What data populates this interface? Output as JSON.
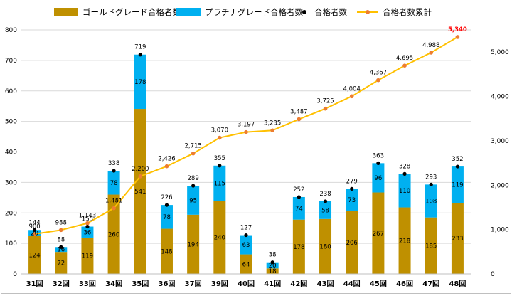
{
  "chart_data": {
    "type": "bar",
    "stacked": true,
    "categories": [
      "31回",
      "32回",
      "33回",
      "34回",
      "35回",
      "36回",
      "37回",
      "39回",
      "40回",
      "41回",
      "42回",
      "43回",
      "44回",
      "45回",
      "46回",
      "47回",
      "48回"
    ],
    "series": [
      {
        "name": "ゴールドグレード合格者数",
        "type": "bar",
        "color": "#bf9000",
        "values": [
          124,
          72,
          119,
          260,
          541,
          148,
          194,
          240,
          64,
          18,
          178,
          180,
          206,
          267,
          218,
          185,
          233
        ]
      },
      {
        "name": "プラチナグレード合格者数",
        "type": "bar",
        "color": "#00b0f0",
        "values": [
          20,
          16,
          36,
          78,
          178,
          78,
          95,
          115,
          63,
          20,
          74,
          58,
          73,
          96,
          110,
          108,
          119
        ]
      },
      {
        "name": "合格者数",
        "type": "scatter",
        "color": "#000000",
        "values": [
          144,
          88,
          155,
          338,
          719,
          226,
          289,
          355,
          127,
          38,
          252,
          238,
          279,
          363,
          328,
          293,
          352
        ]
      },
      {
        "name": "合格者数累計",
        "type": "line",
        "axis": "secondary",
        "color": "#ffc000",
        "marker_color": "#ed7d31",
        "values": [
          900,
          988,
          1143,
          1481,
          2200,
          2426,
          2715,
          3070,
          3197,
          3235,
          3487,
          3725,
          4004,
          4367,
          4695,
          4988,
          5340
        ]
      }
    ],
    "y_primary": {
      "min": 0,
      "max": 800,
      "step": 100,
      "ticks": [
        "0",
        "100",
        "200",
        "300",
        "400",
        "500",
        "600",
        "700",
        "800"
      ]
    },
    "y_secondary": {
      "min": 0,
      "max": 5500,
      "step": 1000,
      "ticks": [
        "0",
        "1,000",
        "2,000",
        "3,000",
        "4,000",
        "5,000"
      ]
    },
    "cumulative_labels": [
      "900",
      "988",
      "1,143",
      "1,481",
      "2,200",
      "2,426",
      "2,715",
      "3,070",
      "3,197",
      "3,235",
      "3,487",
      "3,725",
      "4,004",
      "4,367",
      "4,695",
      "4,988",
      "5,340"
    ],
    "highlight_color": "#ff0000",
    "grid": "horizontal",
    "legend_position": "top"
  }
}
